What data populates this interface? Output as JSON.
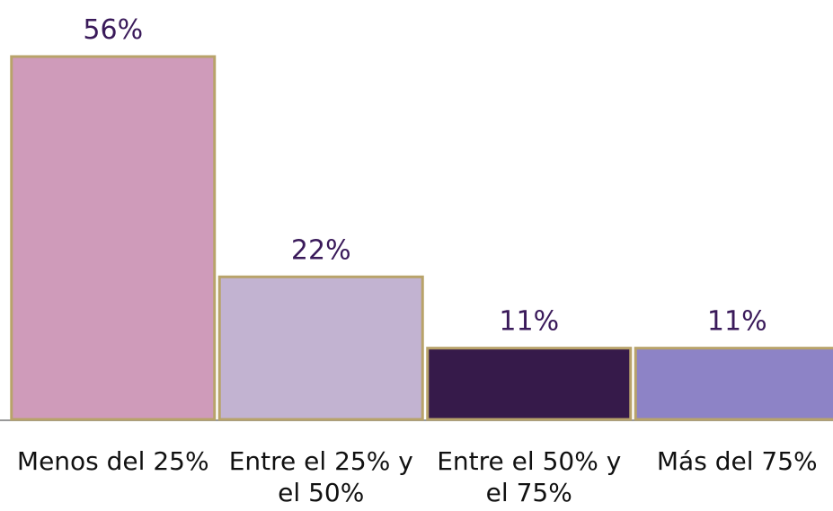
{
  "chart_data": {
    "type": "bar",
    "categories": [
      "Menos del 25%",
      "Entre el 25% y el 50%",
      "Entre el 50% y el 75%",
      "Más del 75%"
    ],
    "values": [
      56,
      22,
      11,
      11
    ],
    "value_labels": [
      "56%",
      "22%",
      "11%",
      "11%"
    ],
    "colors": [
      "#cf9bba",
      "#c2b3d1",
      "#361a4a",
      "#8d83c6"
    ]
  }
}
